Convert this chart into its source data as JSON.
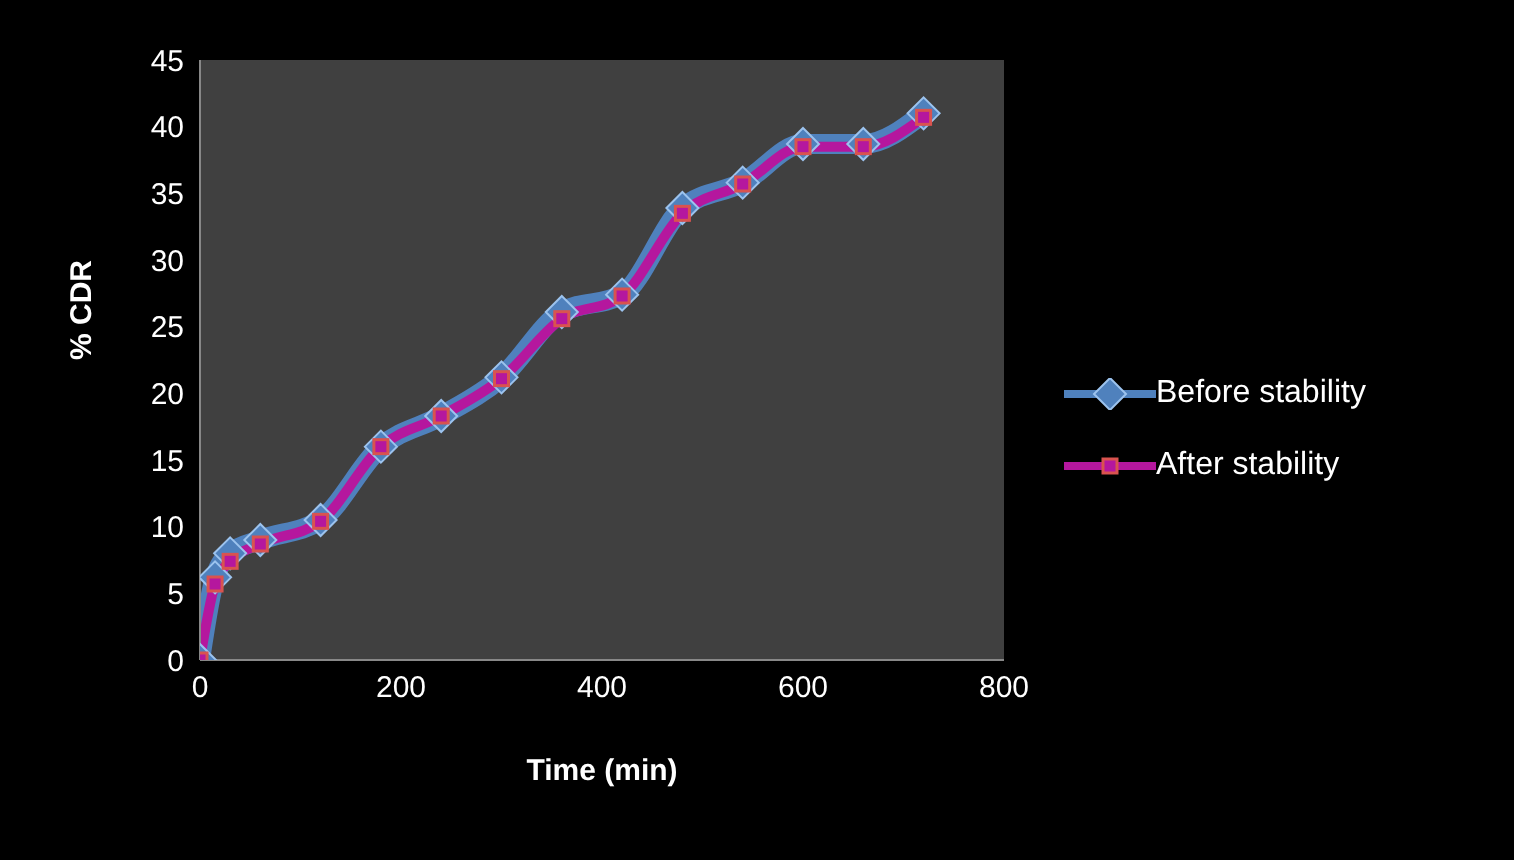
{
  "chart_data": {
    "type": "line",
    "xlabel": "Time (min)",
    "ylabel": "% CDR",
    "x": [
      0,
      15,
      30,
      60,
      120,
      180,
      240,
      300,
      360,
      420,
      480,
      540,
      600,
      660,
      720
    ],
    "series": [
      {
        "name": "Before stability",
        "color": "#4f81bd",
        "marker": "diamond",
        "values": [
          0,
          6.2,
          8,
          9,
          10.5,
          16,
          18.3,
          21.2,
          26.1,
          27.4,
          33.9,
          35.8,
          38.7,
          38.7,
          41
        ]
      },
      {
        "name": "After stability",
        "color": "#b5179e",
        "marker": "square",
        "values": [
          0,
          5.7,
          7.4,
          8.7,
          10.4,
          16,
          18.3,
          21.1,
          25.6,
          27.3,
          33.5,
          35.7,
          38.5,
          38.5,
          40.7
        ]
      }
    ],
    "xlim": [
      0,
      800
    ],
    "xticks": [
      0,
      200,
      400,
      600,
      800
    ],
    "ylim": [
      0,
      45
    ],
    "yticks": [
      0,
      5,
      10,
      15,
      20,
      25,
      30,
      35,
      40,
      45
    ],
    "grid": false,
    "legend": "right",
    "line_style": "solid"
  }
}
